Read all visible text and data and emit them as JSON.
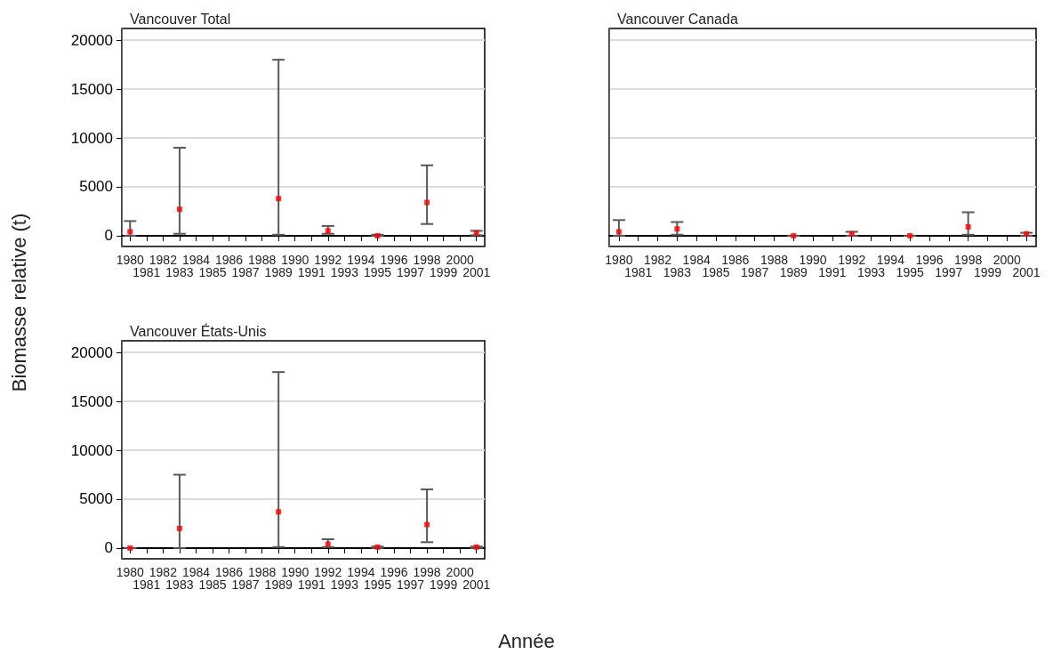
{
  "chart_data": [
    {
      "type": "scatter",
      "title": "Vancouver Total",
      "xlabel": "Année",
      "ylabel": "Biomasse relative (t)",
      "categories": [
        "1980",
        "1981",
        "1982",
        "1983",
        "1984",
        "1985",
        "1986",
        "1987",
        "1988",
        "1989",
        "1990",
        "1991",
        "1992",
        "1993",
        "1994",
        "1995",
        "1996",
        "1997",
        "1998",
        "1999",
        "2000",
        "2001"
      ],
      "series": [
        {
          "color": "#ff0000",
          "values": [
            400,
            null,
            null,
            2700,
            null,
            null,
            null,
            null,
            null,
            3800,
            null,
            null,
            500,
            null,
            null,
            0,
            null,
            null,
            3400,
            null,
            null,
            300
          ],
          "errors": [
            [
              0,
              1500
            ],
            null,
            null,
            [
              200,
              9000
            ],
            null,
            null,
            null,
            null,
            null,
            [
              100,
              18000
            ],
            null,
            null,
            [
              200,
              1000
            ],
            null,
            null,
            [
              0,
              100
            ],
            null,
            null,
            [
              1200,
              7200
            ],
            null,
            null,
            [
              50,
              500
            ]
          ]
        }
      ],
      "ylim": [
        -1100,
        21200
      ],
      "yticks": [
        0,
        5000,
        10000,
        15000,
        20000
      ],
      "grid": "y",
      "marker": "square"
    },
    {
      "type": "scatter",
      "title": "Vancouver Canada",
      "categories": [
        "1980",
        "1981",
        "1982",
        "1983",
        "1984",
        "1985",
        "1986",
        "1987",
        "1988",
        "1989",
        "1990",
        "1991",
        "1992",
        "1993",
        "1994",
        "1995",
        "1996",
        "1997",
        "1998",
        "1999",
        "2000",
        "2001"
      ],
      "series": [
        {
          "color": "#ff0000",
          "values": [
            400,
            null,
            null,
            700,
            null,
            null,
            null,
            null,
            null,
            0,
            null,
            null,
            200,
            null,
            null,
            0,
            null,
            null,
            900,
            null,
            null,
            200
          ],
          "errors": [
            [
              0,
              1600
            ],
            null,
            null,
            [
              100,
              1400
            ],
            null,
            null,
            null,
            null,
            null,
            [
              0,
              0
            ],
            null,
            null,
            [
              0,
              400
            ],
            null,
            null,
            [
              0,
              0
            ],
            null,
            null,
            [
              100,
              2400
            ],
            null,
            null,
            [
              0,
              300
            ]
          ]
        }
      ],
      "ylim": [
        -1100,
        21200
      ],
      "yticks": [
        0,
        5000,
        10000,
        15000,
        20000
      ],
      "grid": "y",
      "marker": "square",
      "tick_labels": "x"
    },
    {
      "type": "scatter",
      "title": "Vancouver États-Unis",
      "categories": [
        "1980",
        "1981",
        "1982",
        "1983",
        "1984",
        "1985",
        "1986",
        "1987",
        "1988",
        "1989",
        "1990",
        "1991",
        "1992",
        "1993",
        "1994",
        "1995",
        "1996",
        "1997",
        "1998",
        "1999",
        "2000",
        "2001"
      ],
      "series": [
        {
          "color": "#ff0000",
          "values": [
            0,
            null,
            null,
            2000,
            null,
            null,
            null,
            null,
            null,
            3700,
            null,
            null,
            400,
            null,
            null,
            100,
            null,
            null,
            2400,
            null,
            null,
            100
          ],
          "errors": [
            [
              0,
              0
            ],
            null,
            null,
            [
              0,
              7500
            ],
            null,
            null,
            null,
            null,
            null,
            [
              100,
              18000
            ],
            null,
            null,
            [
              100,
              900
            ],
            null,
            null,
            [
              0,
              150
            ],
            null,
            null,
            [
              600,
              6000
            ],
            null,
            null,
            [
              0,
              150
            ]
          ]
        }
      ],
      "ylim": [
        -1100,
        21200
      ],
      "yticks": [
        0,
        5000,
        10000,
        15000,
        20000
      ],
      "grid": "y",
      "marker": "square"
    }
  ]
}
